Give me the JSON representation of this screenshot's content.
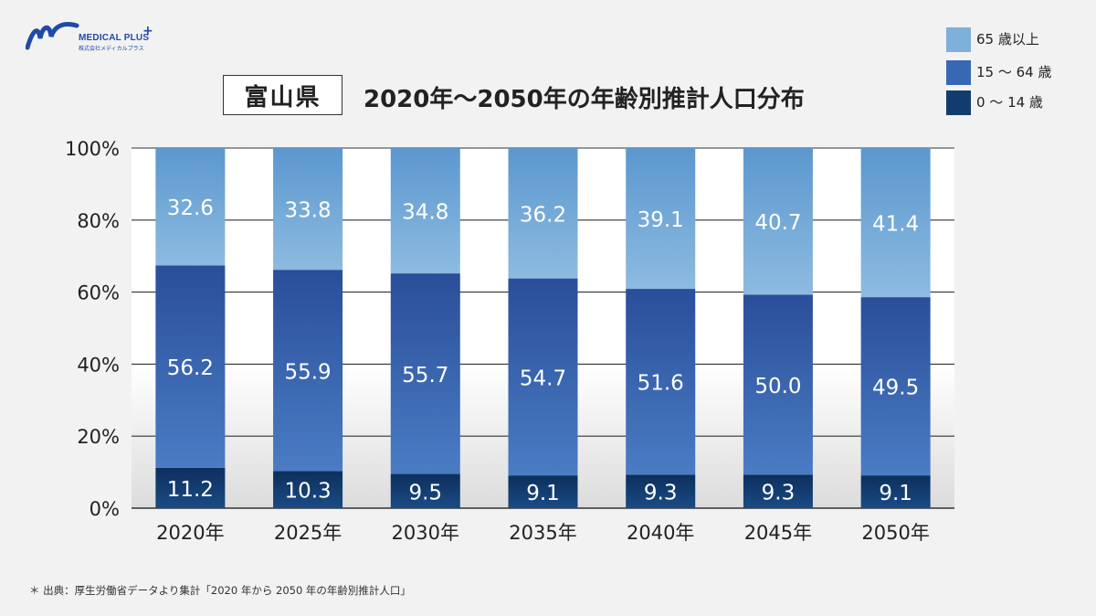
{
  "brand": {
    "name": "MEDICAL PLUS",
    "plus": "+",
    "company": "株式会社メディカルプラス"
  },
  "prefecture": "富山県",
  "title": "2020年～2050年の年齢別推計人口分布",
  "footnote": "＊ 出典：厚生労働省データより集計「2020 年から 2050 年の年齢別推計人口」",
  "colors": {
    "elderly": "#7fb0d9",
    "working": "#3868b4",
    "children": "#123c6e",
    "gridline": "#333333",
    "plot_background": "#ffffff"
  },
  "chart_data": {
    "type": "bar",
    "stacked": true,
    "categories": [
      "2020年",
      "2025年",
      "2030年",
      "2035年",
      "2040年",
      "2045年",
      "2050年"
    ],
    "series": [
      {
        "name": "0 ～ 14 歳",
        "values": [
          11.2,
          10.3,
          9.5,
          9.1,
          9.3,
          9.3,
          9.1
        ],
        "labels": [
          "11.2",
          "10.3",
          "9.5",
          "9.1",
          "9.3",
          "9.3",
          "9.1"
        ]
      },
      {
        "name": "15 ～ 64 歳",
        "values": [
          56.2,
          55.9,
          55.7,
          54.7,
          51.6,
          50.0,
          49.5
        ],
        "labels": [
          "56.2",
          "55.9",
          "55.7",
          "54.7",
          "51.6",
          "50.0",
          "49.5"
        ]
      },
      {
        "name": "65 歳以上",
        "values": [
          32.6,
          33.8,
          34.8,
          36.2,
          39.1,
          40.7,
          41.4
        ],
        "labels": [
          "32.6",
          "33.8",
          "34.8",
          "36.2",
          "39.1",
          "40.7",
          "41.4"
        ]
      }
    ],
    "yticks": [
      "0%",
      "20%",
      "40%",
      "60%",
      "80%",
      "100%"
    ],
    "ylim": [
      0,
      100
    ],
    "grid": true,
    "legend_position": "top-right",
    "legend_order": [
      "65 歳以上",
      "15 ～ 64 歳",
      "0 ～ 14 歳"
    ]
  }
}
